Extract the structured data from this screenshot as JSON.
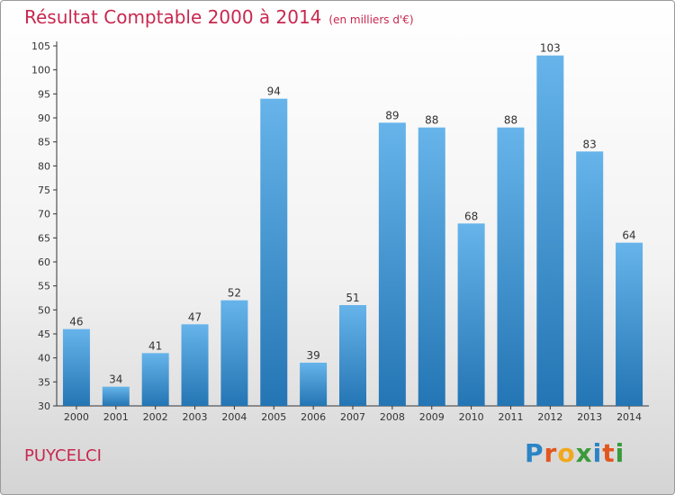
{
  "chart_data": {
    "type": "bar",
    "title": "Résultat Comptable 2000 à 2014",
    "subtitle": "(en milliers d'€)",
    "categories": [
      "2000",
      "2001",
      "2002",
      "2003",
      "2004",
      "2005",
      "2006",
      "2007",
      "2008",
      "2009",
      "2010",
      "2011",
      "2012",
      "2013",
      "2014"
    ],
    "values": [
      46,
      34,
      41,
      47,
      52,
      94,
      39,
      51,
      89,
      88,
      68,
      88,
      103,
      83,
      64
    ],
    "ylim": [
      30,
      105
    ],
    "yticks": [
      30,
      35,
      40,
      45,
      50,
      55,
      60,
      65,
      70,
      75,
      80,
      85,
      90,
      95,
      100,
      105
    ],
    "xlabel": "",
    "ylabel": "",
    "grid": false,
    "bar_color": "#2f86c8"
  },
  "footer": {
    "commune": "PUYCELCI",
    "brand_letters": [
      {
        "ch": "P",
        "color": "#2b84c6"
      },
      {
        "ch": "r",
        "color": "#e2561f"
      },
      {
        "ch": "o",
        "color": "#f2a81c"
      },
      {
        "ch": "x",
        "color": "#3a9a3a"
      },
      {
        "ch": "i",
        "color": "#2b84c6"
      },
      {
        "ch": "t",
        "color": "#e2561f"
      },
      {
        "ch": "i",
        "color": "#3a9a3a"
      }
    ]
  },
  "colors": {
    "title": "#c8284f",
    "bar_light": "#66b4ea",
    "bar_dark": "#2475b4"
  }
}
